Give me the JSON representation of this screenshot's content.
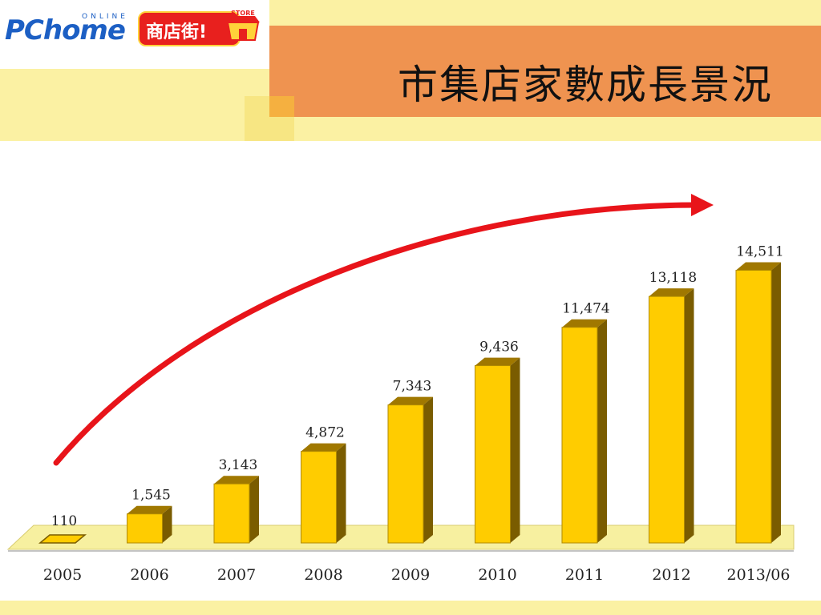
{
  "header": {
    "logo_text": "PChome",
    "logo_online": "ONLINE",
    "logo_badge": "商店街!",
    "logo_store": "STORE",
    "title": "市集店家數成長景況"
  },
  "colors": {
    "bar_front": "#ffcc00",
    "bar_side": "#7a5c00",
    "bar_top": "#a07800",
    "floor": "#f7f0a0",
    "arrow": "#e8141a"
  },
  "chart_data": {
    "type": "bar",
    "categories": [
      "2005",
      "2006",
      "2007",
      "2008",
      "2009",
      "2010",
      "2011",
      "2012",
      "2013/06"
    ],
    "values": [
      110,
      1545,
      3143,
      4872,
      7343,
      9436,
      11474,
      13118,
      14511
    ],
    "value_labels": [
      "110",
      "1,545",
      "3,143",
      "4,872",
      "7,343",
      "9,436",
      "11,474",
      "13,118",
      "14,511"
    ],
    "title": "",
    "xlabel": "",
    "ylabel": "",
    "ylim": [
      0,
      15000
    ],
    "grid": false,
    "legend": "none",
    "style": "3d"
  }
}
